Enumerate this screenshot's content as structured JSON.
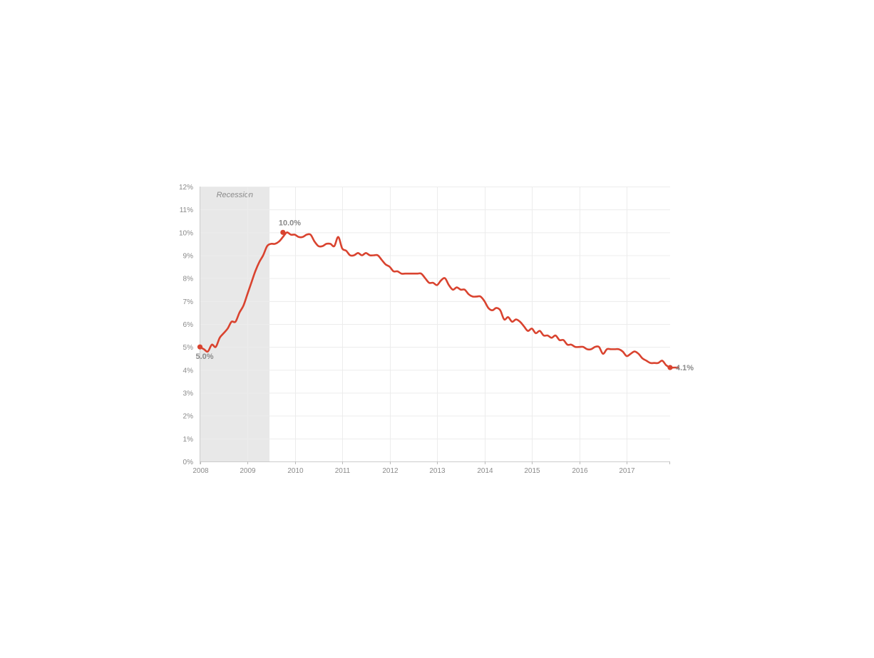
{
  "chart_data": {
    "type": "line",
    "title": "",
    "xlabel": "",
    "ylabel": "",
    "y_unit": "%",
    "ylim": [
      0,
      12
    ],
    "xlim": [
      "2008-01",
      "2017-12"
    ],
    "grid": true,
    "y_ticks": [
      "0%",
      "1%",
      "2%",
      "3%",
      "4%",
      "5%",
      "6%",
      "7%",
      "8%",
      "9%",
      "10%",
      "11%",
      "12%"
    ],
    "x_ticks": [
      "2008",
      "2009",
      "2010",
      "2011",
      "2012",
      "2013",
      "2014",
      "2015",
      "2016",
      "2017"
    ],
    "recession": {
      "label": "Recession",
      "start": "2008-01",
      "end": "2009-06",
      "color": "#e8e8e8"
    },
    "line_color": "#d9432f",
    "series": [
      {
        "start": "2008-01",
        "frequency": "monthly",
        "values": [
          5.0,
          4.9,
          4.8,
          5.1,
          5.0,
          5.4,
          5.6,
          5.8,
          6.1,
          6.1,
          6.5,
          6.8,
          7.3,
          7.8,
          8.3,
          8.7,
          9.0,
          9.4,
          9.5,
          9.5,
          9.6,
          9.8,
          10.0,
          9.9,
          9.9,
          9.8,
          9.8,
          9.9,
          9.9,
          9.6,
          9.4,
          9.4,
          9.5,
          9.5,
          9.4,
          9.8,
          9.3,
          9.2,
          9.0,
          9.0,
          9.1,
          9.0,
          9.1,
          9.0,
          9.0,
          9.0,
          8.8,
          8.6,
          8.5,
          8.3,
          8.3,
          8.2,
          8.2,
          8.2,
          8.2,
          8.2,
          8.2,
          8.0,
          7.8,
          7.8,
          7.7,
          7.9,
          8.0,
          7.7,
          7.5,
          7.6,
          7.5,
          7.5,
          7.3,
          7.2,
          7.2,
          7.2,
          7.0,
          6.7,
          6.6,
          6.7,
          6.6,
          6.2,
          6.3,
          6.1,
          6.2,
          6.1,
          5.9,
          5.7,
          5.8,
          5.6,
          5.7,
          5.5,
          5.5,
          5.4,
          5.5,
          5.3,
          5.3,
          5.1,
          5.1,
          5.0,
          5.0,
          5.0,
          4.9,
          4.9,
          5.0,
          5.0,
          4.7,
          4.9,
          4.9,
          4.9,
          4.9,
          4.8,
          4.6,
          4.7,
          4.8,
          4.7,
          4.5,
          4.4,
          4.3,
          4.3,
          4.3,
          4.4,
          4.2,
          4.1,
          4.1,
          4.1
        ]
      }
    ],
    "annotations": [
      {
        "label": "5.0%",
        "x": "2008-01",
        "y": 5.0
      },
      {
        "label": "10.0%",
        "x": "2009-10",
        "y": 10.0
      },
      {
        "label": "4.1%",
        "x": "2017-12",
        "y": 4.1
      }
    ]
  }
}
